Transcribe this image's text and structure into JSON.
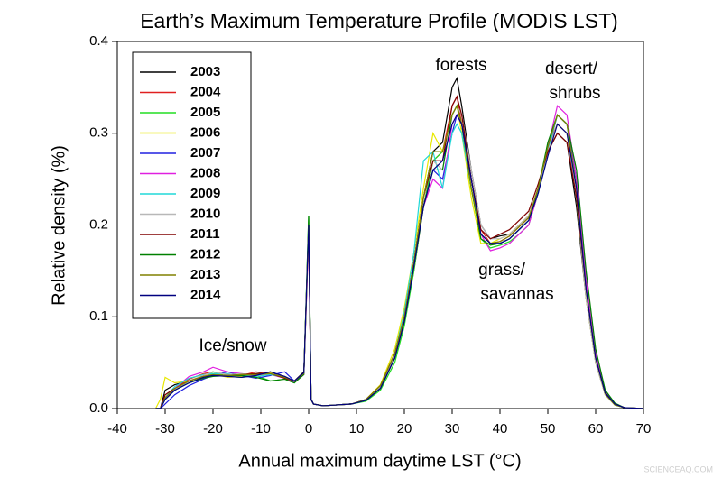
{
  "chart_data": {
    "type": "line",
    "title": "Earth’s Maximum Temperature Profile (MODIS LST)",
    "x_label": "Annual maximum daytime LST (°C)",
    "y_label": "Relative density (%)",
    "annotations": [
      "forests",
      "desert/",
      "shrubs",
      "grass/",
      "savannas",
      "Ice/snow"
    ],
    "watermark": "SCIENCEAQ.COM",
    "xlim": [
      -40,
      70
    ],
    "xticks": [
      -40,
      -30,
      -20,
      -10,
      0,
      10,
      20,
      30,
      40,
      50,
      60,
      70
    ],
    "ylim": [
      0,
      0.4
    ],
    "yticks": [
      {
        "value": 0,
        "label": "0.0"
      },
      0.1,
      0.2,
      0.3,
      0.4
    ],
    "grid": false,
    "legend": "upper left",
    "x": [
      -32,
      -31,
      -30,
      -28,
      -25,
      -22,
      -20,
      -17,
      -14,
      -11,
      -8,
      -5,
      -3,
      -1,
      0,
      0.5,
      1,
      3,
      6,
      9,
      12,
      15,
      18,
      20,
      22,
      24,
      26,
      28,
      30,
      31,
      32,
      34,
      36,
      38,
      40,
      42,
      44,
      46,
      48,
      50,
      52,
      54,
      56,
      58,
      60,
      62,
      64,
      66,
      70
    ],
    "series": [
      {
        "name": "2003",
        "color": "#000000",
        "values": [
          0,
          0,
          0.02,
          0.026,
          0.03,
          0.035,
          0.037,
          0.036,
          0.037,
          0.038,
          0.04,
          0.035,
          0.03,
          0.04,
          0.2,
          0.01,
          0.005,
          0.003,
          0.004,
          0.005,
          0.01,
          0.025,
          0.06,
          0.1,
          0.16,
          0.23,
          0.28,
          0.29,
          0.35,
          0.36,
          0.33,
          0.26,
          0.2,
          0.185,
          0.188,
          0.19,
          0.2,
          0.21,
          0.24,
          0.28,
          0.3,
          0.29,
          0.22,
          0.12,
          0.05,
          0.015,
          0.004,
          0.001,
          0
        ]
      },
      {
        "name": "2004",
        "color": "#e02020",
        "values": [
          0,
          0,
          0.015,
          0.022,
          0.032,
          0.038,
          0.04,
          0.037,
          0.036,
          0.04,
          0.038,
          0.033,
          0.029,
          0.038,
          0.19,
          0.01,
          0.005,
          0.003,
          0.004,
          0.005,
          0.009,
          0.022,
          0.055,
          0.095,
          0.15,
          0.22,
          0.27,
          0.28,
          0.33,
          0.34,
          0.31,
          0.25,
          0.195,
          0.18,
          0.182,
          0.188,
          0.198,
          0.208,
          0.24,
          0.285,
          0.31,
          0.3,
          0.24,
          0.13,
          0.055,
          0.017,
          0.005,
          0.001,
          0
        ]
      },
      {
        "name": "2005",
        "color": "#22dd22",
        "values": [
          0,
          0,
          0.01,
          0.02,
          0.028,
          0.034,
          0.04,
          0.035,
          0.034,
          0.036,
          0.03,
          0.032,
          0.028,
          0.038,
          0.21,
          0.01,
          0.005,
          0.003,
          0.004,
          0.005,
          0.008,
          0.02,
          0.05,
          0.09,
          0.15,
          0.22,
          0.27,
          0.28,
          0.32,
          0.33,
          0.31,
          0.24,
          0.185,
          0.175,
          0.178,
          0.182,
          0.19,
          0.2,
          0.235,
          0.285,
          0.32,
          0.31,
          0.25,
          0.14,
          0.06,
          0.02,
          0.005,
          0.001,
          0
        ]
      },
      {
        "name": "2006",
        "color": "#e8e800",
        "values": [
          0,
          0.01,
          0.034,
          0.028,
          0.03,
          0.036,
          0.038,
          0.034,
          0.035,
          0.037,
          0.039,
          0.034,
          0.03,
          0.039,
          0.2,
          0.01,
          0.005,
          0.003,
          0.004,
          0.005,
          0.01,
          0.026,
          0.065,
          0.11,
          0.17,
          0.24,
          0.3,
          0.28,
          0.32,
          0.33,
          0.3,
          0.23,
          0.18,
          0.18,
          0.185,
          0.19,
          0.2,
          0.21,
          0.24,
          0.28,
          0.31,
          0.3,
          0.23,
          0.12,
          0.05,
          0.015,
          0.004,
          0.001,
          0
        ]
      },
      {
        "name": "2007",
        "color": "#2020e0",
        "values": [
          0,
          0,
          0.005,
          0.015,
          0.025,
          0.032,
          0.036,
          0.04,
          0.036,
          0.033,
          0.036,
          0.04,
          0.03,
          0.038,
          0.2,
          0.01,
          0.005,
          0.003,
          0.004,
          0.005,
          0.009,
          0.022,
          0.055,
          0.095,
          0.155,
          0.22,
          0.26,
          0.25,
          0.3,
          0.32,
          0.31,
          0.25,
          0.19,
          0.18,
          0.18,
          0.185,
          0.195,
          0.205,
          0.235,
          0.28,
          0.32,
          0.31,
          0.25,
          0.14,
          0.06,
          0.018,
          0.005,
          0.001,
          0
        ]
      },
      {
        "name": "2008",
        "color": "#e020e0",
        "values": [
          0,
          0,
          0.01,
          0.022,
          0.035,
          0.04,
          0.045,
          0.04,
          0.038,
          0.036,
          0.037,
          0.033,
          0.029,
          0.037,
          0.19,
          0.01,
          0.005,
          0.003,
          0.004,
          0.005,
          0.01,
          0.024,
          0.06,
          0.1,
          0.16,
          0.22,
          0.25,
          0.24,
          0.31,
          0.32,
          0.31,
          0.25,
          0.19,
          0.172,
          0.175,
          0.18,
          0.19,
          0.2,
          0.235,
          0.285,
          0.33,
          0.32,
          0.25,
          0.14,
          0.06,
          0.018,
          0.005,
          0.001,
          0
        ]
      },
      {
        "name": "2009",
        "color": "#20d8d8",
        "values": [
          0,
          0,
          0.012,
          0.024,
          0.033,
          0.037,
          0.038,
          0.038,
          0.036,
          0.035,
          0.037,
          0.034,
          0.03,
          0.038,
          0.2,
          0.01,
          0.005,
          0.003,
          0.004,
          0.005,
          0.01,
          0.024,
          0.06,
          0.105,
          0.17,
          0.27,
          0.28,
          0.24,
          0.3,
          0.31,
          0.3,
          0.24,
          0.19,
          0.18,
          0.18,
          0.185,
          0.195,
          0.205,
          0.235,
          0.28,
          0.32,
          0.31,
          0.24,
          0.13,
          0.055,
          0.016,
          0.004,
          0.001,
          0
        ]
      },
      {
        "name": "2010",
        "color": "#b8b8b8",
        "values": [
          0,
          0,
          0.01,
          0.02,
          0.03,
          0.036,
          0.04,
          0.037,
          0.038,
          0.036,
          0.038,
          0.034,
          0.03,
          0.038,
          0.2,
          0.01,
          0.005,
          0.003,
          0.004,
          0.005,
          0.01,
          0.024,
          0.058,
          0.1,
          0.16,
          0.23,
          0.27,
          0.26,
          0.32,
          0.33,
          0.32,
          0.26,
          0.2,
          0.185,
          0.185,
          0.19,
          0.2,
          0.21,
          0.24,
          0.28,
          0.31,
          0.3,
          0.23,
          0.12,
          0.05,
          0.015,
          0.004,
          0.001,
          0
        ]
      },
      {
        "name": "2011",
        "color": "#800000",
        "values": [
          0,
          0,
          0.015,
          0.022,
          0.03,
          0.035,
          0.036,
          0.036,
          0.037,
          0.038,
          0.038,
          0.033,
          0.03,
          0.039,
          0.2,
          0.01,
          0.005,
          0.003,
          0.004,
          0.005,
          0.01,
          0.025,
          0.06,
          0.1,
          0.16,
          0.23,
          0.27,
          0.27,
          0.33,
          0.34,
          0.32,
          0.25,
          0.195,
          0.185,
          0.19,
          0.195,
          0.205,
          0.215,
          0.245,
          0.28,
          0.3,
          0.29,
          0.23,
          0.13,
          0.055,
          0.017,
          0.005,
          0.001,
          0
        ]
      },
      {
        "name": "2012",
        "color": "#008000",
        "values": [
          0,
          0,
          0.01,
          0.02,
          0.028,
          0.033,
          0.035,
          0.036,
          0.036,
          0.034,
          0.03,
          0.032,
          0.028,
          0.037,
          0.21,
          0.01,
          0.005,
          0.003,
          0.004,
          0.005,
          0.009,
          0.022,
          0.055,
          0.095,
          0.155,
          0.22,
          0.26,
          0.26,
          0.32,
          0.33,
          0.31,
          0.24,
          0.185,
          0.178,
          0.18,
          0.185,
          0.195,
          0.205,
          0.24,
          0.29,
          0.32,
          0.31,
          0.26,
          0.15,
          0.065,
          0.02,
          0.006,
          0.001,
          0
        ]
      },
      {
        "name": "2013",
        "color": "#808000",
        "values": [
          0,
          0,
          0.012,
          0.022,
          0.03,
          0.035,
          0.037,
          0.036,
          0.037,
          0.037,
          0.038,
          0.034,
          0.03,
          0.038,
          0.2,
          0.01,
          0.005,
          0.003,
          0.004,
          0.005,
          0.01,
          0.025,
          0.06,
          0.1,
          0.16,
          0.23,
          0.28,
          0.28,
          0.32,
          0.33,
          0.31,
          0.24,
          0.19,
          0.18,
          0.182,
          0.188,
          0.198,
          0.208,
          0.24,
          0.285,
          0.32,
          0.31,
          0.24,
          0.13,
          0.055,
          0.016,
          0.004,
          0.001,
          0
        ]
      },
      {
        "name": "2014",
        "color": "#000080",
        "values": [
          0,
          0,
          0.01,
          0.02,
          0.028,
          0.034,
          0.036,
          0.035,
          0.034,
          0.036,
          0.04,
          0.035,
          0.03,
          0.039,
          0.2,
          0.01,
          0.005,
          0.003,
          0.004,
          0.005,
          0.009,
          0.022,
          0.055,
          0.095,
          0.155,
          0.22,
          0.26,
          0.27,
          0.31,
          0.32,
          0.31,
          0.25,
          0.19,
          0.18,
          0.18,
          0.185,
          0.195,
          0.205,
          0.235,
          0.275,
          0.31,
          0.3,
          0.24,
          0.13,
          0.055,
          0.017,
          0.005,
          0.001,
          0
        ]
      }
    ]
  }
}
